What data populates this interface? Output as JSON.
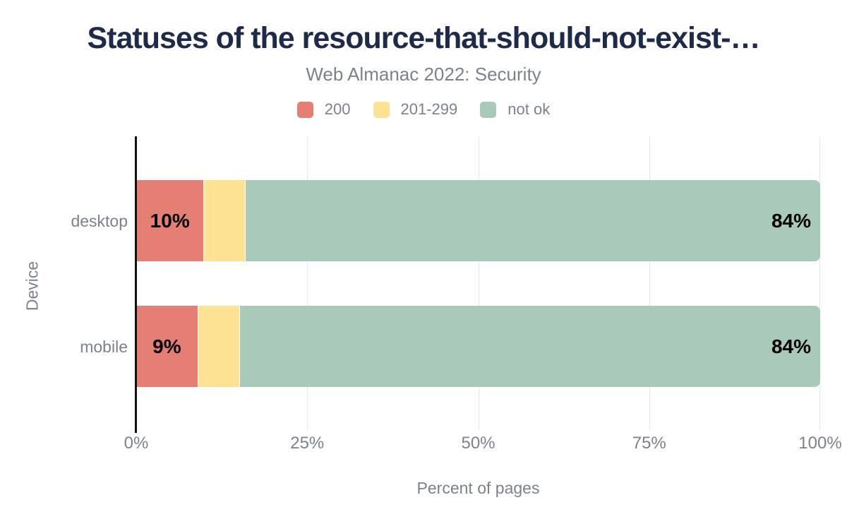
{
  "title": "Statuses of the resource-that-should-not-exist-…",
  "subtitle": "Web Almanac 2022: Security",
  "chart_data": {
    "type": "bar",
    "orientation": "horizontal",
    "stacked": true,
    "categories": [
      "desktop",
      "mobile"
    ],
    "series": [
      {
        "name": "200",
        "color": "#e57e73",
        "values": [
          10,
          9
        ],
        "labels": [
          "10%",
          "9%"
        ]
      },
      {
        "name": "201-299",
        "color": "#fde294",
        "values": [
          6,
          6
        ],
        "labels": [
          "",
          ""
        ]
      },
      {
        "name": "not ok",
        "color": "#a9cab9",
        "values": [
          84,
          84
        ],
        "labels": [
          "84%",
          "84%"
        ]
      }
    ],
    "xlabel": "Percent of pages",
    "ylabel": "Device",
    "x_ticks": [
      "0%",
      "25%",
      "50%",
      "75%",
      "100%"
    ],
    "xlim": [
      0,
      100
    ],
    "grid": true,
    "legend_position": "top"
  },
  "colors": {
    "title": "#1e2a49",
    "text_muted": "#7b828c",
    "value_label": "#000000",
    "gridline": "#e7e7e7",
    "axis_line": "#111111",
    "background": "#ffffff"
  }
}
